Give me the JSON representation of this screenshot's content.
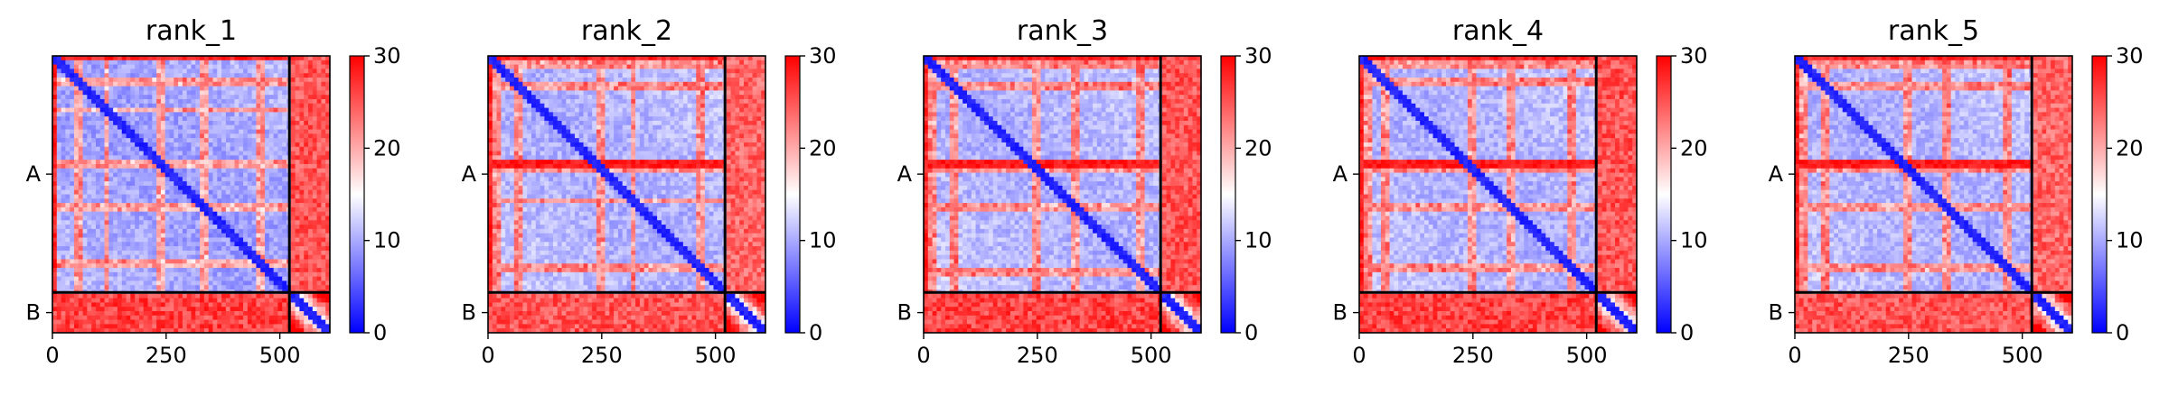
{
  "figure": {
    "colors": {
      "low": "#0000ff",
      "mid": "#ffffff",
      "high": "#ff0000",
      "boundary": "#000000"
    }
  },
  "chart_data": [
    {
      "type": "heatmap",
      "title": "rank_1",
      "x_ticks": [
        0,
        250,
        500
      ],
      "y_tick_labels": [
        "A",
        "B"
      ],
      "chain_boundaries": [
        0,
        521,
        610
      ],
      "matrix_size": 610,
      "colorbar": {
        "min": 0,
        "max": 30,
        "ticks": [
          0,
          10,
          20,
          30
        ],
        "colormap": "bwr"
      },
      "profile": {
        "seed": 11,
        "off_diag_A": 7,
        "inter_chain": 28,
        "stripe_rows": [
          55,
          120,
          235,
          330,
          455
        ],
        "dark_stripes": []
      }
    },
    {
      "type": "heatmap",
      "title": "rank_2",
      "x_ticks": [
        0,
        250,
        500
      ],
      "y_tick_labels": [
        "A",
        "B"
      ],
      "chain_boundaries": [
        0,
        521,
        610
      ],
      "matrix_size": 610,
      "colorbar": {
        "min": 0,
        "max": 30,
        "ticks": [
          0,
          10,
          20,
          30
        ],
        "colormap": "bwr"
      },
      "profile": {
        "seed": 23,
        "off_diag_A": 8,
        "inter_chain": 27,
        "stripe_rows": [
          20,
          65,
          250,
          320,
          470
        ],
        "dark_stripes": [
          235
        ]
      }
    },
    {
      "type": "heatmap",
      "title": "rank_3",
      "x_ticks": [
        0,
        250,
        500
      ],
      "y_tick_labels": [
        "A",
        "B"
      ],
      "chain_boundaries": [
        0,
        521,
        610
      ],
      "matrix_size": 610,
      "colorbar": {
        "min": 0,
        "max": 30,
        "ticks": [
          0,
          10,
          20,
          30
        ],
        "colormap": "bwr"
      },
      "profile": {
        "seed": 37,
        "off_diag_A": 8,
        "inter_chain": 28,
        "stripe_rows": [
          20,
          70,
          250,
          330,
          475
        ],
        "dark_stripes": [
          235
        ]
      }
    },
    {
      "type": "heatmap",
      "title": "rank_4",
      "x_ticks": [
        0,
        250,
        500
      ],
      "y_tick_labels": [
        "A",
        "B"
      ],
      "chain_boundaries": [
        0,
        521,
        610
      ],
      "matrix_size": 610,
      "colorbar": {
        "min": 0,
        "max": 30,
        "ticks": [
          0,
          10,
          20,
          30
        ],
        "colormap": "bwr"
      },
      "profile": {
        "seed": 41,
        "off_diag_A": 8,
        "inter_chain": 28,
        "stripe_rows": [
          20,
          60,
          250,
          330,
          470
        ],
        "dark_stripes": [
          235
        ]
      }
    },
    {
      "type": "heatmap",
      "title": "rank_5",
      "x_ticks": [
        0,
        250,
        500
      ],
      "y_tick_labels": [
        "A",
        "B"
      ],
      "chain_boundaries": [
        0,
        521,
        610
      ],
      "matrix_size": 610,
      "colorbar": {
        "min": 0,
        "max": 30,
        "ticks": [
          0,
          10,
          20,
          30
        ],
        "colormap": "bwr"
      },
      "profile": {
        "seed": 53,
        "off_diag_A": 8,
        "inter_chain": 27,
        "stripe_rows": [
          20,
          70,
          250,
          330,
          470
        ],
        "dark_stripes": [
          235
        ]
      }
    }
  ]
}
